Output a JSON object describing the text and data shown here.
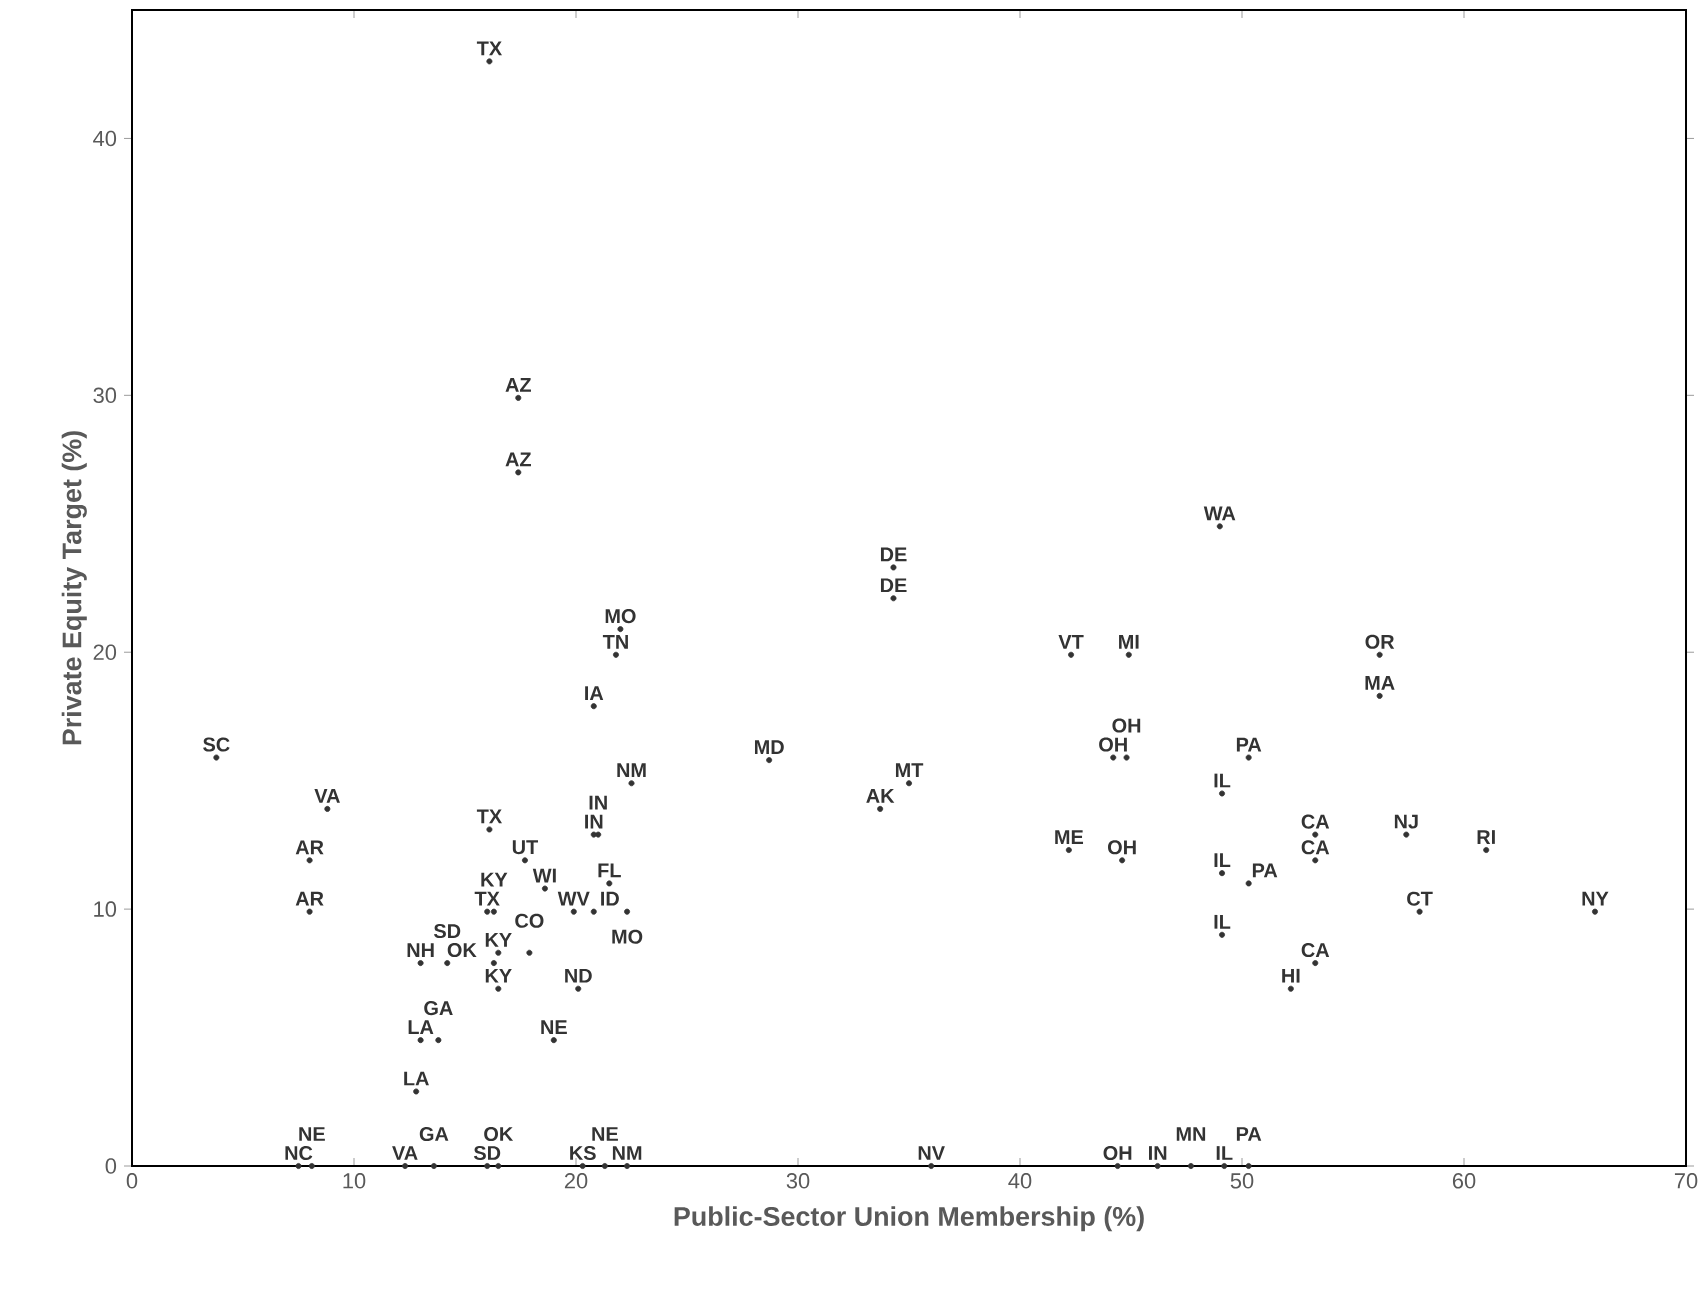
{
  "chart_data": {
    "type": "scatter",
    "xlabel": "Public-Sector Union Membership (%)",
    "ylabel": "Private Equity Target  (%)",
    "xlim": [
      0,
      70
    ],
    "xticks": [
      0,
      10,
      20,
      30,
      40,
      50,
      60,
      70
    ],
    "ylim": [
      0,
      45
    ],
    "yticks": [
      0,
      10,
      20,
      30,
      40
    ],
    "grid": false,
    "marker": "circle",
    "series": [
      {
        "color": "#333333",
        "x": [
          16.1,
          17.4,
          17.4,
          22.0,
          21.8,
          20.8,
          22.5,
          34.3,
          34.3,
          49.0,
          42.3,
          44.9,
          56.2,
          56.2,
          3.8,
          28.7,
          35.0,
          33.7,
          44.2,
          44.8,
          50.3,
          49.1,
          8.8,
          16.1,
          20.8,
          21.0,
          17.7,
          8.0,
          8.0,
          18.6,
          21.5,
          16.0,
          16.3,
          19.9,
          20.8,
          22.3,
          42.2,
          44.6,
          49.1,
          50.3,
          53.3,
          53.3,
          57.4,
          61.0,
          58.0,
          65.9,
          49.1,
          53.3,
          52.2,
          16.5,
          17.9,
          16.3,
          16.5,
          20.1,
          19.0,
          13.0,
          14.2,
          13.0,
          13.8,
          12.8,
          7.5,
          8.1,
          12.3,
          13.6,
          16.0,
          16.5,
          20.3,
          21.3,
          22.3,
          36.0,
          44.4,
          46.2,
          47.7,
          49.2,
          50.3
        ],
        "values": [
          43.0,
          29.9,
          27.0,
          20.9,
          19.9,
          17.9,
          14.9,
          23.3,
          22.1,
          24.9,
          19.9,
          19.9,
          19.9,
          18.3,
          15.9,
          15.8,
          14.9,
          13.9,
          15.9,
          15.9,
          15.9,
          14.5,
          13.9,
          13.1,
          12.9,
          12.9,
          11.9,
          11.9,
          9.9,
          10.8,
          11.0,
          9.9,
          9.9,
          9.9,
          9.9,
          9.9,
          12.3,
          11.9,
          11.4,
          11.0,
          12.9,
          11.9,
          12.9,
          12.3,
          9.9,
          9.9,
          9.0,
          7.9,
          6.9,
          8.3,
          8.3,
          7.9,
          6.9,
          6.9,
          4.9,
          7.9,
          7.9,
          4.9,
          4.9,
          2.9,
          0,
          0,
          0,
          0,
          0,
          0,
          0,
          0,
          0,
          0,
          0,
          0,
          0,
          0,
          0
        ],
        "value_labels": [
          "TX",
          "AZ",
          "AZ",
          "MO",
          "TN",
          "IA",
          "NM",
          "DE",
          "DE",
          "WA",
          "VT",
          "MI",
          "OR",
          "MA",
          "SC",
          "MD",
          "MT",
          "AK",
          "OH",
          "OH",
          "PA",
          "IL",
          "VA",
          "TX",
          "IN",
          "IN",
          "UT",
          "AR",
          "AR",
          "WI",
          "FL",
          "TX",
          "KY",
          "WV",
          "ID",
          "MO",
          "ME",
          "OH",
          "IL",
          "PA",
          "CA",
          "CA",
          "NJ",
          "RI",
          "CT",
          "NY",
          "IL",
          "CA",
          "HI",
          "KY",
          "CO",
          "OK",
          "KY",
          "ND",
          "NE",
          "NH",
          "SD",
          "LA",
          "GA",
          "LA",
          "NC",
          "NE",
          "VA",
          "GA",
          "SD",
          "OK",
          "KS",
          "NE",
          "NM",
          "NV",
          "OH",
          "IN",
          "MN",
          "IL",
          "PA"
        ]
      }
    ]
  }
}
